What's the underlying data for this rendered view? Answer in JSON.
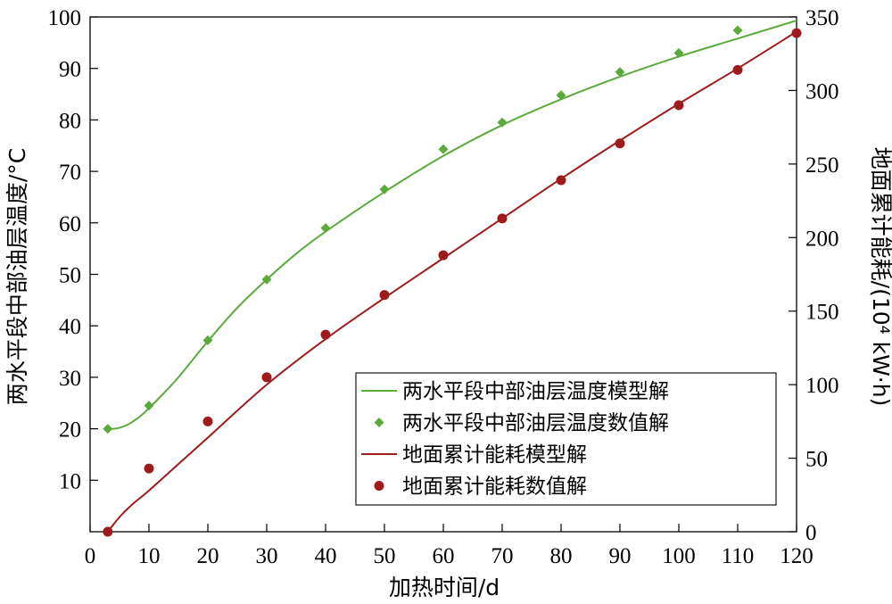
{
  "chart_data": {
    "type": "line",
    "xlabel": "加热时间/d",
    "ylabel_left": "两水平段中部油层温度/°C",
    "ylabel_right": "地面累计能耗/(10⁴ kW·h)",
    "xlim": [
      0,
      120
    ],
    "ylim_left": [
      0,
      100
    ],
    "ylim_right": [
      0,
      350
    ],
    "x_ticks": [
      0,
      10,
      20,
      30,
      40,
      50,
      60,
      70,
      80,
      90,
      100,
      110,
      120
    ],
    "y_ticks_left": [
      10,
      20,
      30,
      40,
      50,
      60,
      70,
      80,
      90,
      100
    ],
    "y_ticks_right": [
      0,
      50,
      100,
      150,
      200,
      250,
      300,
      350
    ],
    "grid": false,
    "legend_position": "lower-right",
    "series": [
      {
        "name": "两水平段中部油层温度模型解",
        "kind": "line",
        "axis": "left",
        "color": "#5aab3c",
        "x": [
          3,
          4,
          5,
          6,
          7,
          8,
          9,
          10,
          12,
          15,
          20,
          25,
          30,
          35,
          40,
          50,
          60,
          70,
          80,
          90,
          100,
          110,
          120
        ],
        "y": [
          20,
          20,
          20.2,
          20.6,
          21.2,
          22,
          22.9,
          24,
          26.3,
          30,
          37,
          43.5,
          49,
          54,
          58.3,
          66,
          73,
          79,
          84,
          88.4,
          92.3,
          95.8,
          99.3
        ]
      },
      {
        "name": "两水平段中部油层温度数值解",
        "kind": "scatter",
        "marker": "diamond",
        "axis": "left",
        "color": "#5aab3c",
        "x": [
          3,
          10,
          20,
          30,
          40,
          50,
          60,
          70,
          80,
          90,
          100,
          110
        ],
        "y": [
          20,
          24.5,
          37.2,
          49,
          59,
          66.5,
          74.3,
          79.5,
          84.8,
          89.3,
          93,
          97.4
        ]
      },
      {
        "name": "地面累计能耗模型解",
        "kind": "line",
        "axis": "right",
        "color": "#9e1b1b",
        "x": [
          3,
          5,
          7,
          10,
          15,
          20,
          30,
          40,
          50,
          60,
          70,
          80,
          90,
          100,
          110,
          120
        ],
        "y": [
          0,
          10,
          18,
          28,
          46,
          64,
          100,
          131,
          159,
          186,
          213,
          240,
          266,
          291,
          315,
          340
        ]
      },
      {
        "name": "地面累计能耗数值解",
        "kind": "scatter",
        "marker": "circle",
        "axis": "right",
        "color": "#9e1b1b",
        "x": [
          3,
          10,
          20,
          30,
          40,
          50,
          60,
          70,
          80,
          90,
          100,
          110,
          120
        ],
        "y": [
          0,
          43,
          75,
          105,
          134,
          161,
          188,
          213,
          239,
          264,
          290,
          314,
          339
        ]
      }
    ]
  }
}
